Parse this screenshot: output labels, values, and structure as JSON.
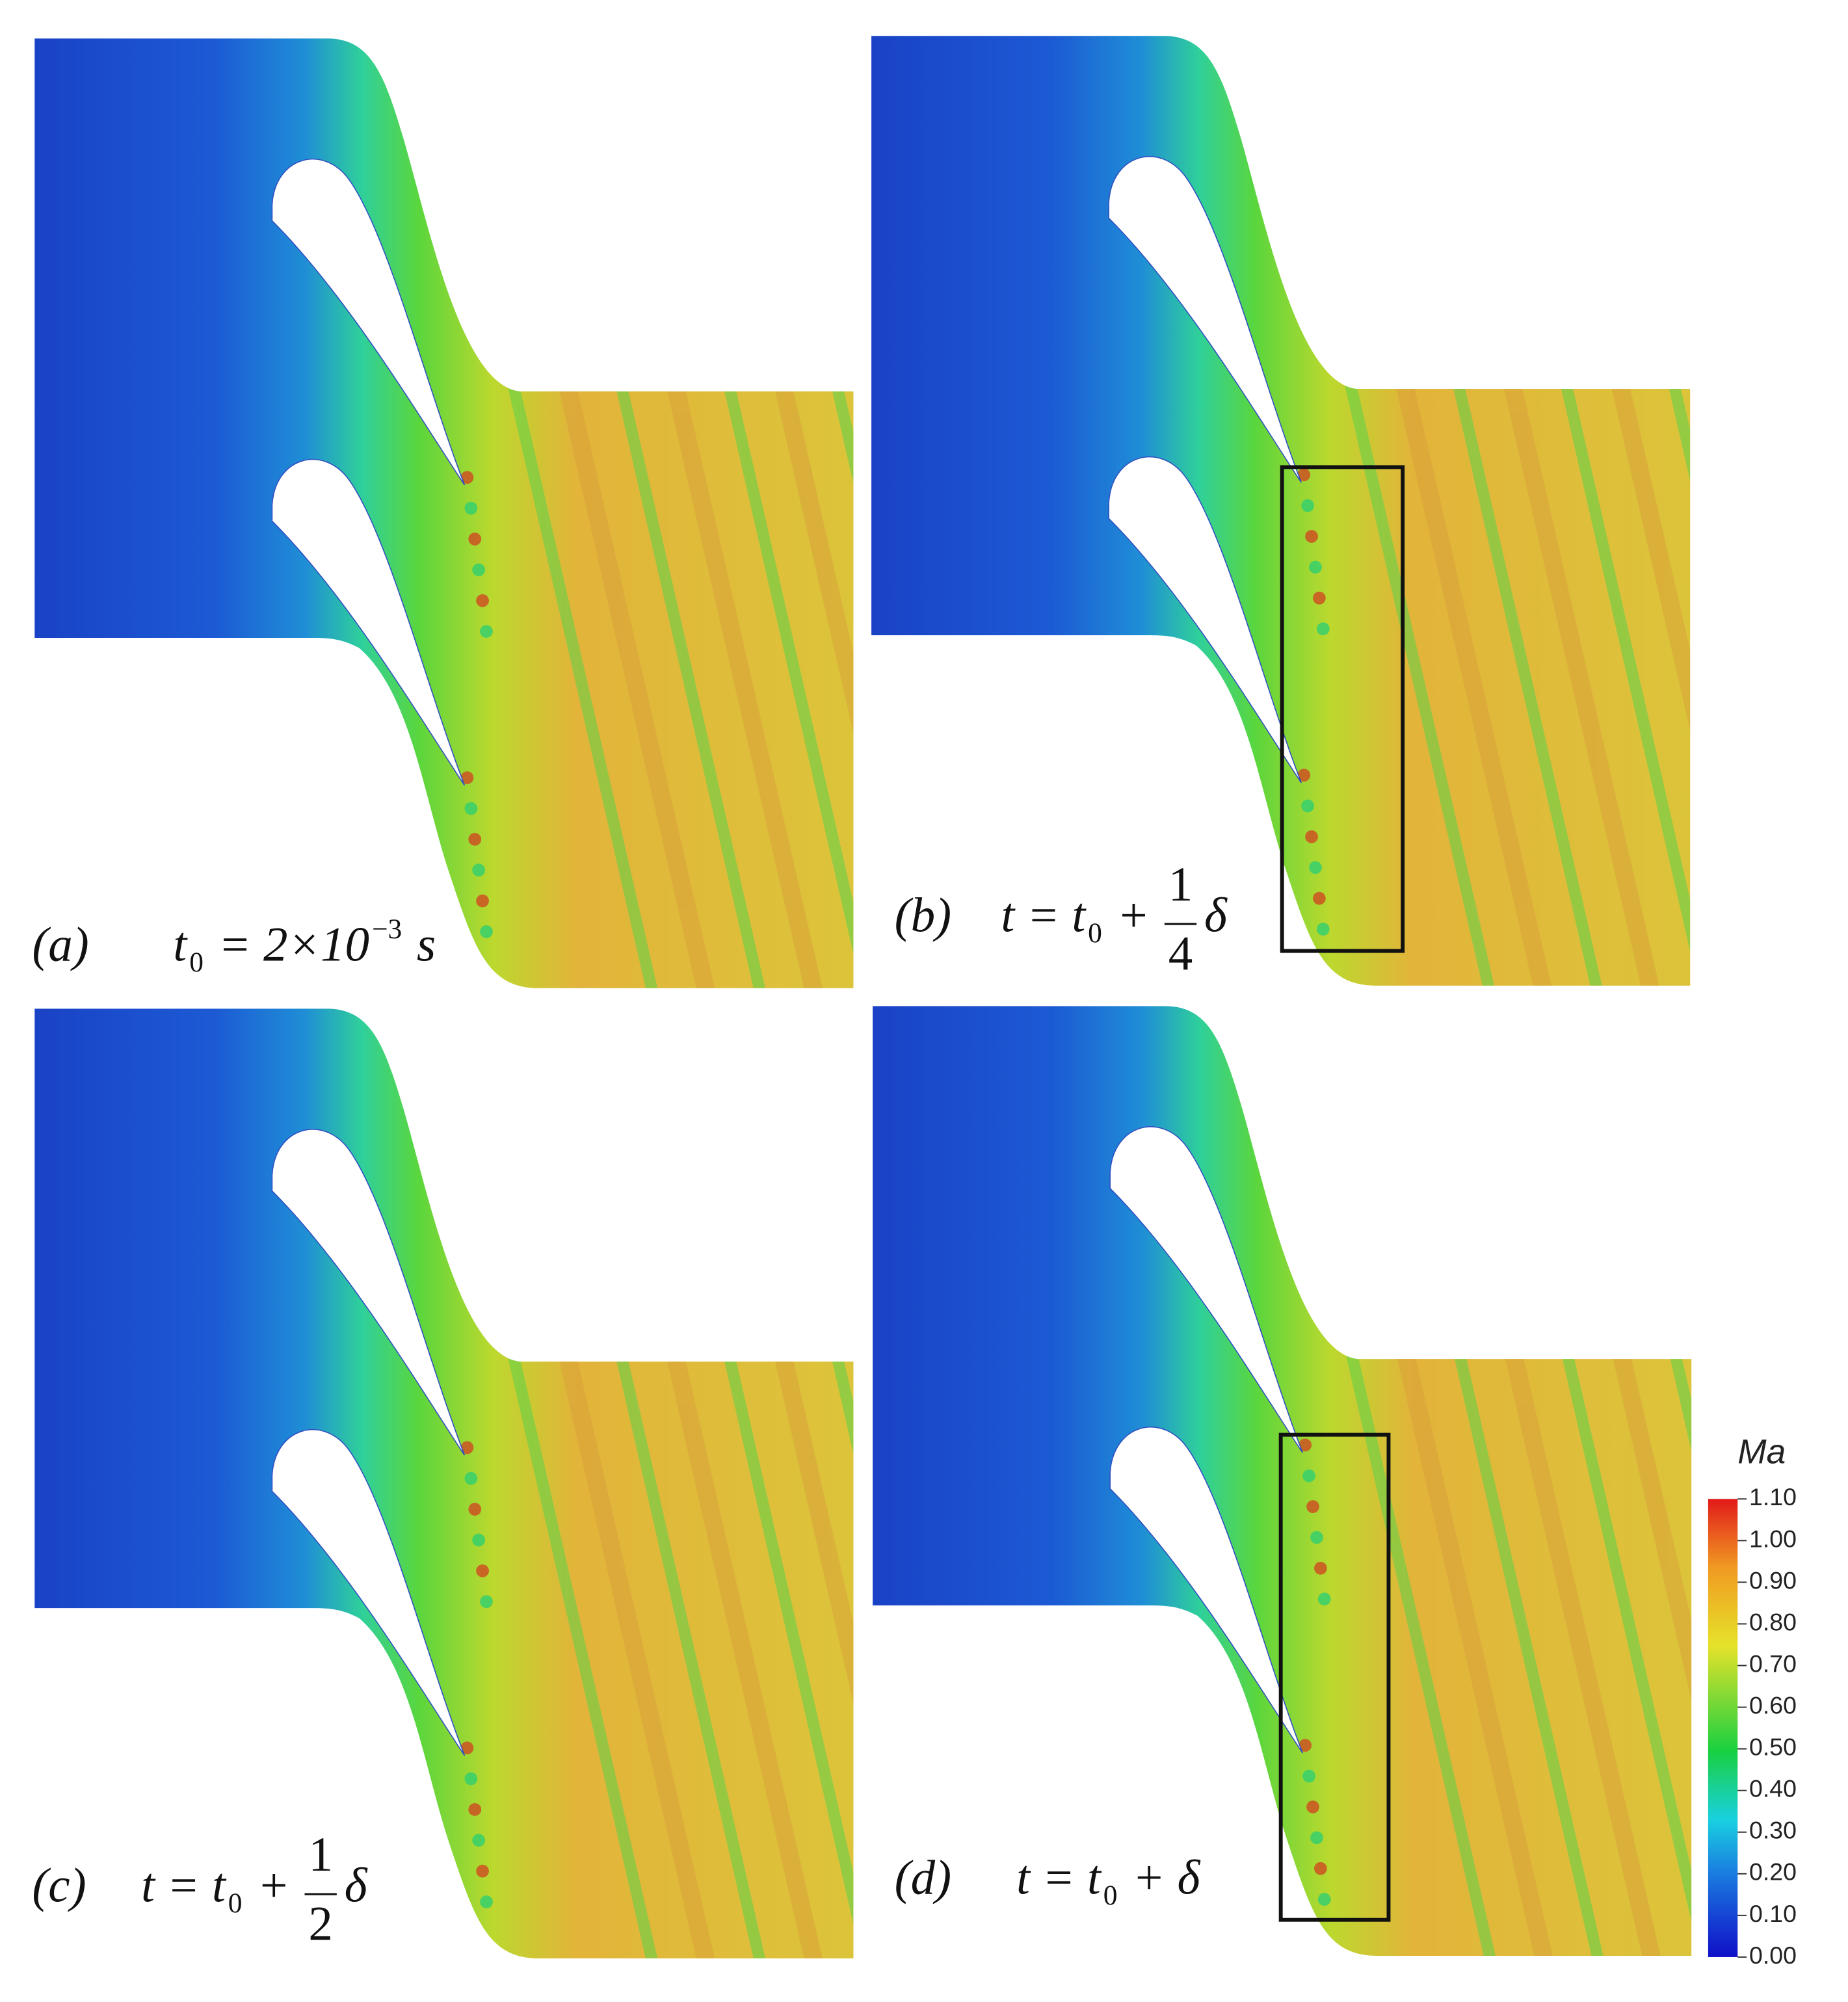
{
  "panels": [
    {
      "label": "(a)",
      "equation": [
        {
          "text": "t"
        },
        {
          "sub": "0"
        },
        {
          "text": " = 2×10"
        },
        {
          "sup": "−3"
        },
        {
          "text": " s"
        }
      ]
    },
    {
      "label": "(b)",
      "equation": [
        {
          "text": "t = t"
        },
        {
          "sub": "0"
        },
        {
          "text": " + "
        },
        {
          "num": "1",
          "den": "4"
        },
        {
          "text": "δ"
        }
      ]
    },
    {
      "label": "(c)",
      "equation": [
        {
          "text": "t = t"
        },
        {
          "sub": "0"
        },
        {
          "text": " + "
        },
        {
          "num": "1",
          "den": "2"
        },
        {
          "text": "δ"
        }
      ]
    },
    {
      "label": "(d)",
      "equation": [
        {
          "text": "t = t"
        },
        {
          "sub": "0"
        },
        {
          "text": " + δ"
        }
      ]
    }
  ],
  "colorbar": {
    "title": "Ma",
    "range": [
      0,
      1.1
    ],
    "ticks": [
      {
        "value": 1.1,
        "label": "1.10"
      },
      {
        "value": 1,
        "label": "1.00"
      },
      {
        "value": 0.9,
        "label": "0.90"
      },
      {
        "value": 0.8,
        "label": "0.80"
      },
      {
        "value": 0.7,
        "label": "0.70"
      },
      {
        "value": 0.6,
        "label": "0.60"
      },
      {
        "value": 0.5,
        "label": "0.50"
      },
      {
        "value": 0.4,
        "label": "0.40"
      },
      {
        "value": 0.3,
        "label": "0.30"
      },
      {
        "value": 0.2,
        "label": "0.20"
      },
      {
        "value": 0.1,
        "label": "0.10"
      },
      {
        "value": 0,
        "label": "0.00"
      }
    ]
  }
}
